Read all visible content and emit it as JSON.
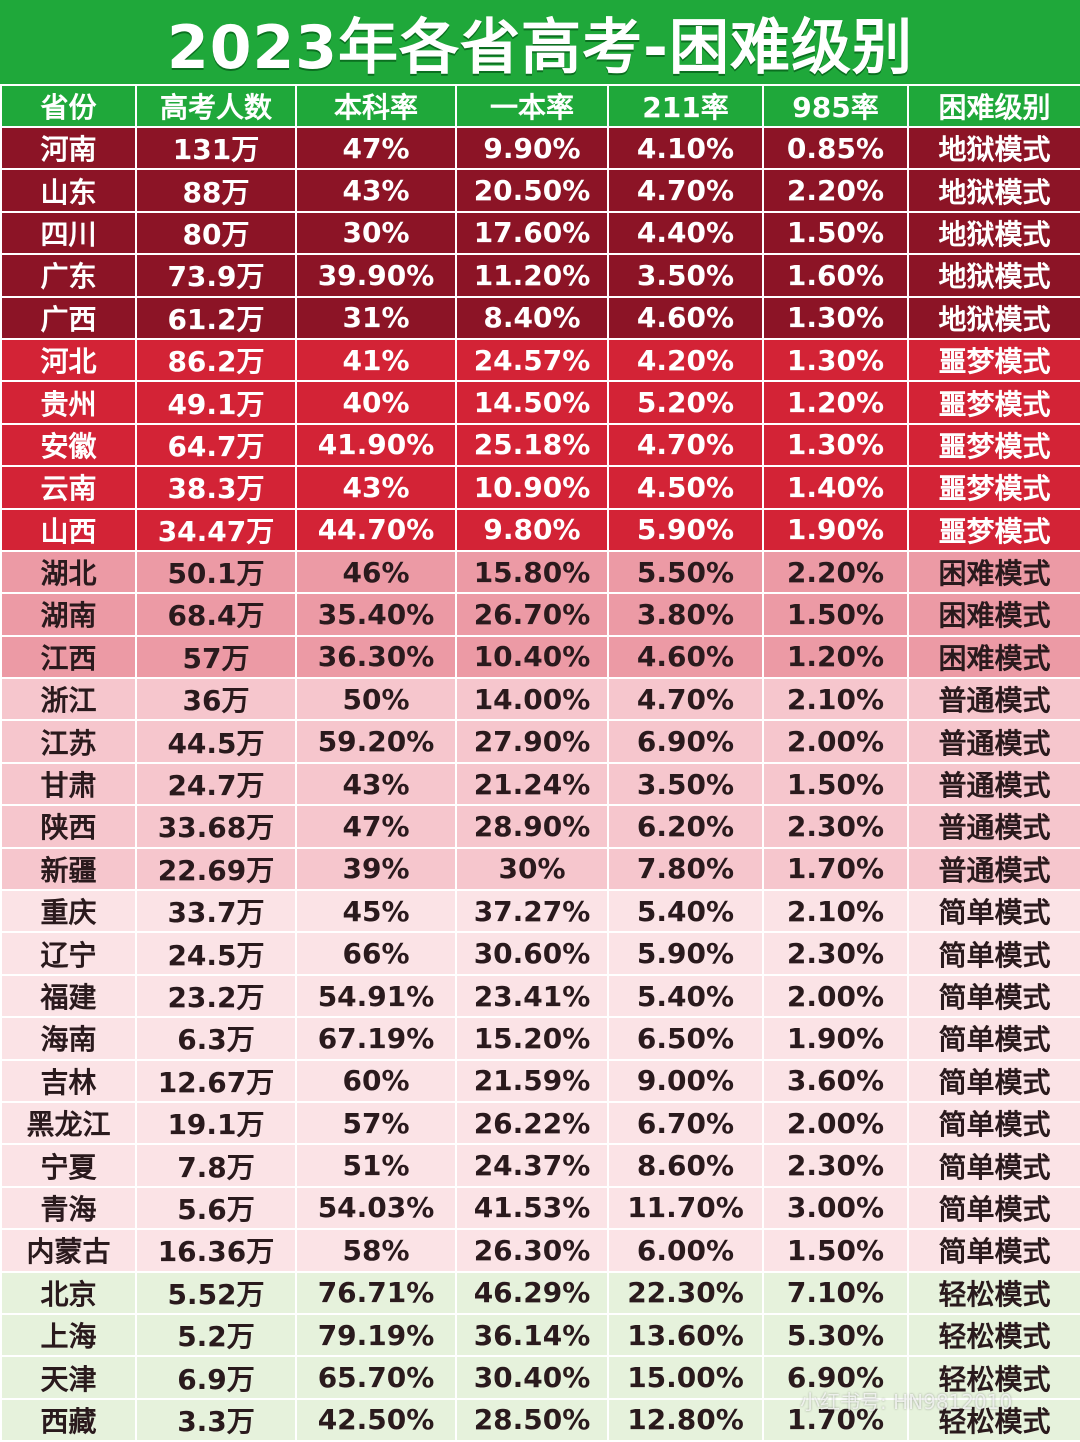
{
  "title": "2023年各省高考-困难级别",
  "chart_data": {
    "type": "table",
    "columns": [
      "省份",
      "高考人数",
      "本科率",
      "一本率",
      "211率",
      "985率",
      "困难级别"
    ],
    "rows": [
      [
        "河南",
        "131万",
        "47%",
        "9.90%",
        "4.10%",
        "0.85%",
        "地狱模式"
      ],
      [
        "山东",
        "88万",
        "43%",
        "20.50%",
        "4.70%",
        "2.20%",
        "地狱模式"
      ],
      [
        "四川",
        "80万",
        "30%",
        "17.60%",
        "4.40%",
        "1.50%",
        "地狱模式"
      ],
      [
        "广东",
        "73.9万",
        "39.90%",
        "11.20%",
        "3.50%",
        "1.60%",
        "地狱模式"
      ],
      [
        "广西",
        "61.2万",
        "31%",
        "8.40%",
        "4.60%",
        "1.30%",
        "地狱模式"
      ],
      [
        "河北",
        "86.2万",
        "41%",
        "24.57%",
        "4.20%",
        "1.30%",
        "噩梦模式"
      ],
      [
        "贵州",
        "49.1万",
        "40%",
        "14.50%",
        "5.20%",
        "1.20%",
        "噩梦模式"
      ],
      [
        "安徽",
        "64.7万",
        "41.90%",
        "25.18%",
        "4.70%",
        "1.30%",
        "噩梦模式"
      ],
      [
        "云南",
        "38.3万",
        "43%",
        "10.90%",
        "4.50%",
        "1.40%",
        "噩梦模式"
      ],
      [
        "山西",
        "34.47万",
        "44.70%",
        "9.80%",
        "5.90%",
        "1.90%",
        "噩梦模式"
      ],
      [
        "湖北",
        "50.1万",
        "46%",
        "15.80%",
        "5.50%",
        "2.20%",
        "困难模式"
      ],
      [
        "湖南",
        "68.4万",
        "35.40%",
        "26.70%",
        "3.80%",
        "1.50%",
        "困难模式"
      ],
      [
        "江西",
        "57万",
        "36.30%",
        "10.40%",
        "4.60%",
        "1.20%",
        "困难模式"
      ],
      [
        "浙江",
        "36万",
        "50%",
        "14.00%",
        "4.70%",
        "2.10%",
        "普通模式"
      ],
      [
        "江苏",
        "44.5万",
        "59.20%",
        "27.90%",
        "6.90%",
        "2.00%",
        "普通模式"
      ],
      [
        "甘肃",
        "24.7万",
        "43%",
        "21.24%",
        "3.50%",
        "1.50%",
        "普通模式"
      ],
      [
        "陕西",
        "33.68万",
        "47%",
        "28.90%",
        "6.20%",
        "2.30%",
        "普通模式"
      ],
      [
        "新疆",
        "22.69万",
        "39%",
        "30%",
        "7.80%",
        "1.70%",
        "普通模式"
      ],
      [
        "重庆",
        "33.7万",
        "45%",
        "37.27%",
        "5.40%",
        "2.10%",
        "简单模式"
      ],
      [
        "辽宁",
        "24.5万",
        "66%",
        "30.60%",
        "5.90%",
        "2.30%",
        "简单模式"
      ],
      [
        "福建",
        "23.2万",
        "54.91%",
        "23.41%",
        "5.40%",
        "2.00%",
        "简单模式"
      ],
      [
        "海南",
        "6.3万",
        "67.19%",
        "15.20%",
        "6.50%",
        "1.90%",
        "简单模式"
      ],
      [
        "吉林",
        "12.67万",
        "60%",
        "21.59%",
        "9.00%",
        "3.60%",
        "简单模式"
      ],
      [
        "黑龙江",
        "19.1万",
        "57%",
        "26.22%",
        "6.70%",
        "2.00%",
        "简单模式"
      ],
      [
        "宁夏",
        "7.8万",
        "51%",
        "24.37%",
        "8.60%",
        "2.30%",
        "简单模式"
      ],
      [
        "青海",
        "5.6万",
        "54.03%",
        "41.53%",
        "11.70%",
        "3.00%",
        "简单模式"
      ],
      [
        "内蒙古",
        "16.36万",
        "58%",
        "26.30%",
        "6.00%",
        "1.50%",
        "简单模式"
      ],
      [
        "北京",
        "5.52万",
        "76.71%",
        "46.29%",
        "22.30%",
        "7.10%",
        "轻松模式"
      ],
      [
        "上海",
        "5.2万",
        "79.19%",
        "36.14%",
        "13.60%",
        "5.30%",
        "轻松模式"
      ],
      [
        "天津",
        "6.9万",
        "65.70%",
        "30.40%",
        "15.00%",
        "6.90%",
        "轻松模式"
      ],
      [
        "西藏",
        "3.3万",
        "42.50%",
        "28.50%",
        "12.80%",
        "1.70%",
        "轻松模式"
      ]
    ],
    "level_colors": {
      "地狱模式": "#8c1426",
      "噩梦模式": "#d32336",
      "困难模式": "#ec9aa5",
      "普通模式": "#f6c6cd",
      "简单模式": "#fbe3e6",
      "轻松模式": "#e6f2dc"
    },
    "header_color": "#1fa83a"
  },
  "watermark": "小红书号: HN9812010"
}
